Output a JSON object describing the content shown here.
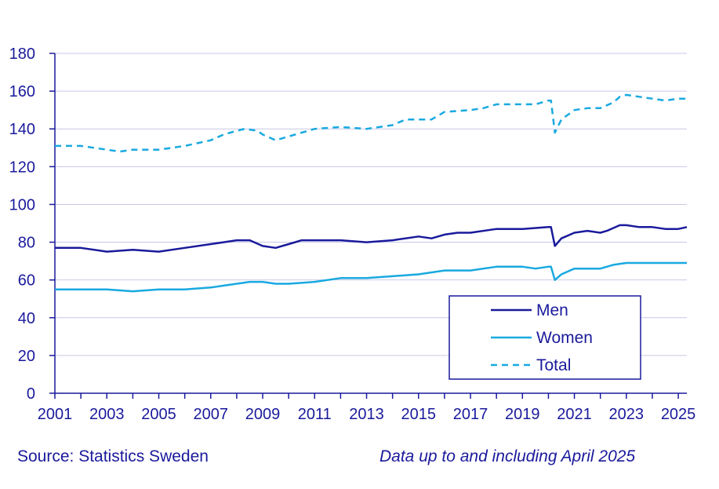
{
  "chart_data": {
    "type": "line",
    "title": "",
    "xlabel": "",
    "ylabel": "",
    "xlim": [
      2001,
      2025.33
    ],
    "ylim": [
      0,
      180
    ],
    "y_ticks": [
      0,
      20,
      40,
      60,
      80,
      100,
      120,
      140,
      160,
      180
    ],
    "x_ticks": [
      2001,
      2003,
      2005,
      2007,
      2009,
      2011,
      2013,
      2015,
      2017,
      2019,
      2021,
      2023,
      2025
    ],
    "grid": true,
    "legend_position": "bottom-right",
    "series": [
      {
        "name": "Men",
        "color": "#1a1a9c",
        "style": "solid",
        "x": [
          2001,
          2002,
          2003,
          2004,
          2005,
          2006,
          2007,
          2007.5,
          2008,
          2008.5,
          2009,
          2009.5,
          2010,
          2010.5,
          2011,
          2012,
          2013,
          2014,
          2015,
          2015.5,
          2016,
          2016.5,
          2017,
          2018,
          2019,
          2020,
          2020.1,
          2020.25,
          2020.5,
          2021,
          2021.5,
          2022,
          2022.25,
          2022.75,
          2023,
          2023.5,
          2024,
          2024.5,
          2025,
          2025.33
        ],
        "y": [
          77,
          77,
          75,
          76,
          75,
          77,
          79,
          80,
          81,
          81,
          78,
          77,
          79,
          81,
          81,
          81,
          80,
          81,
          83,
          82,
          84,
          85,
          85,
          87,
          87,
          88,
          88,
          78,
          82,
          85,
          86,
          85,
          86,
          89,
          89,
          88,
          88,
          87,
          87,
          88
        ]
      },
      {
        "name": "Women",
        "color": "#19a9e0",
        "style": "solid",
        "x": [
          2001,
          2002,
          2003,
          2004,
          2005,
          2006,
          2007,
          2007.5,
          2008,
          2008.5,
          2009,
          2009.5,
          2010,
          2011,
          2012,
          2013,
          2014,
          2015,
          2016,
          2017,
          2018,
          2019,
          2019.5,
          2020,
          2020.1,
          2020.25,
          2020.5,
          2021,
          2021.5,
          2022,
          2022.5,
          2023,
          2023.5,
          2024,
          2025,
          2025.33
        ],
        "y": [
          55,
          55,
          55,
          54,
          55,
          55,
          56,
          57,
          58,
          59,
          59,
          58,
          58,
          59,
          61,
          61,
          62,
          63,
          65,
          65,
          67,
          67,
          66,
          67,
          67,
          60,
          63,
          66,
          66,
          66,
          68,
          69,
          69,
          69,
          69,
          69
        ]
      },
      {
        "name": "Total",
        "color": "#19a9e0",
        "style": "dashed",
        "x": [
          2001,
          2001.5,
          2002,
          2003,
          2003.5,
          2004,
          2005,
          2005.5,
          2006,
          2007,
          2007.5,
          2008,
          2008.3,
          2008.8,
          2009,
          2009.5,
          2010,
          2011,
          2012,
          2013,
          2014,
          2014.5,
          2015,
          2015.5,
          2016,
          2017,
          2017.5,
          2018,
          2019,
          2019.5,
          2020,
          2020.1,
          2020.25,
          2020.5,
          2021,
          2021.5,
          2022,
          2022.5,
          2022.75,
          2023,
          2023.5,
          2024,
          2024.5,
          2025,
          2025.33
        ],
        "y": [
          131,
          131,
          131,
          129,
          128,
          129,
          129,
          130,
          131,
          134,
          137,
          139,
          140,
          139,
          137,
          134,
          136,
          140,
          141,
          140,
          142,
          145,
          145,
          145,
          149,
          150,
          151,
          153,
          153,
          153,
          155,
          155,
          138,
          145,
          150,
          151,
          151,
          154,
          157,
          158,
          157,
          156,
          155,
          156,
          156
        ]
      }
    ]
  },
  "footer": {
    "source": "Source: Statistics Sweden",
    "note": "Data up to and including April 2025"
  }
}
